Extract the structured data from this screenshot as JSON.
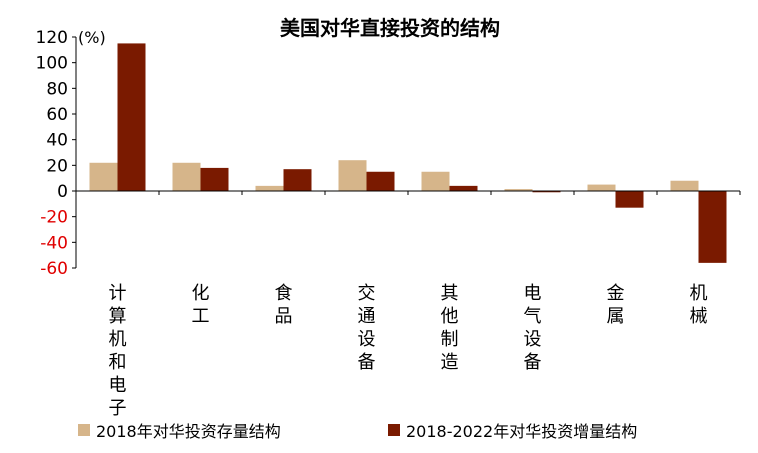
{
  "chart_data": {
    "type": "bar",
    "title": "美国对华直接投资的结构",
    "unit_label": "(%)",
    "categories": [
      "计算机和电子",
      "化工",
      "食品",
      "交通设备",
      "其他制造",
      "电气设备",
      "金属",
      "机械"
    ],
    "series": [
      {
        "name": "2018年对华投资存量结构",
        "color": "#D6B58A",
        "values": [
          22,
          22,
          4,
          24,
          15,
          1.5,
          5,
          8
        ]
      },
      {
        "name": "2018-2022年对华投资增量结构",
        "color": "#7A1A00",
        "values": [
          115,
          18,
          17,
          15,
          4,
          -1,
          -13,
          -56
        ]
      }
    ],
    "ylim": [
      -60,
      120
    ],
    "yticks": [
      -60,
      -40,
      -20,
      0,
      20,
      40,
      60,
      80,
      100,
      120
    ],
    "negative_tick_color": "#E00000",
    "grid": false,
    "legend_position": "bottom"
  }
}
